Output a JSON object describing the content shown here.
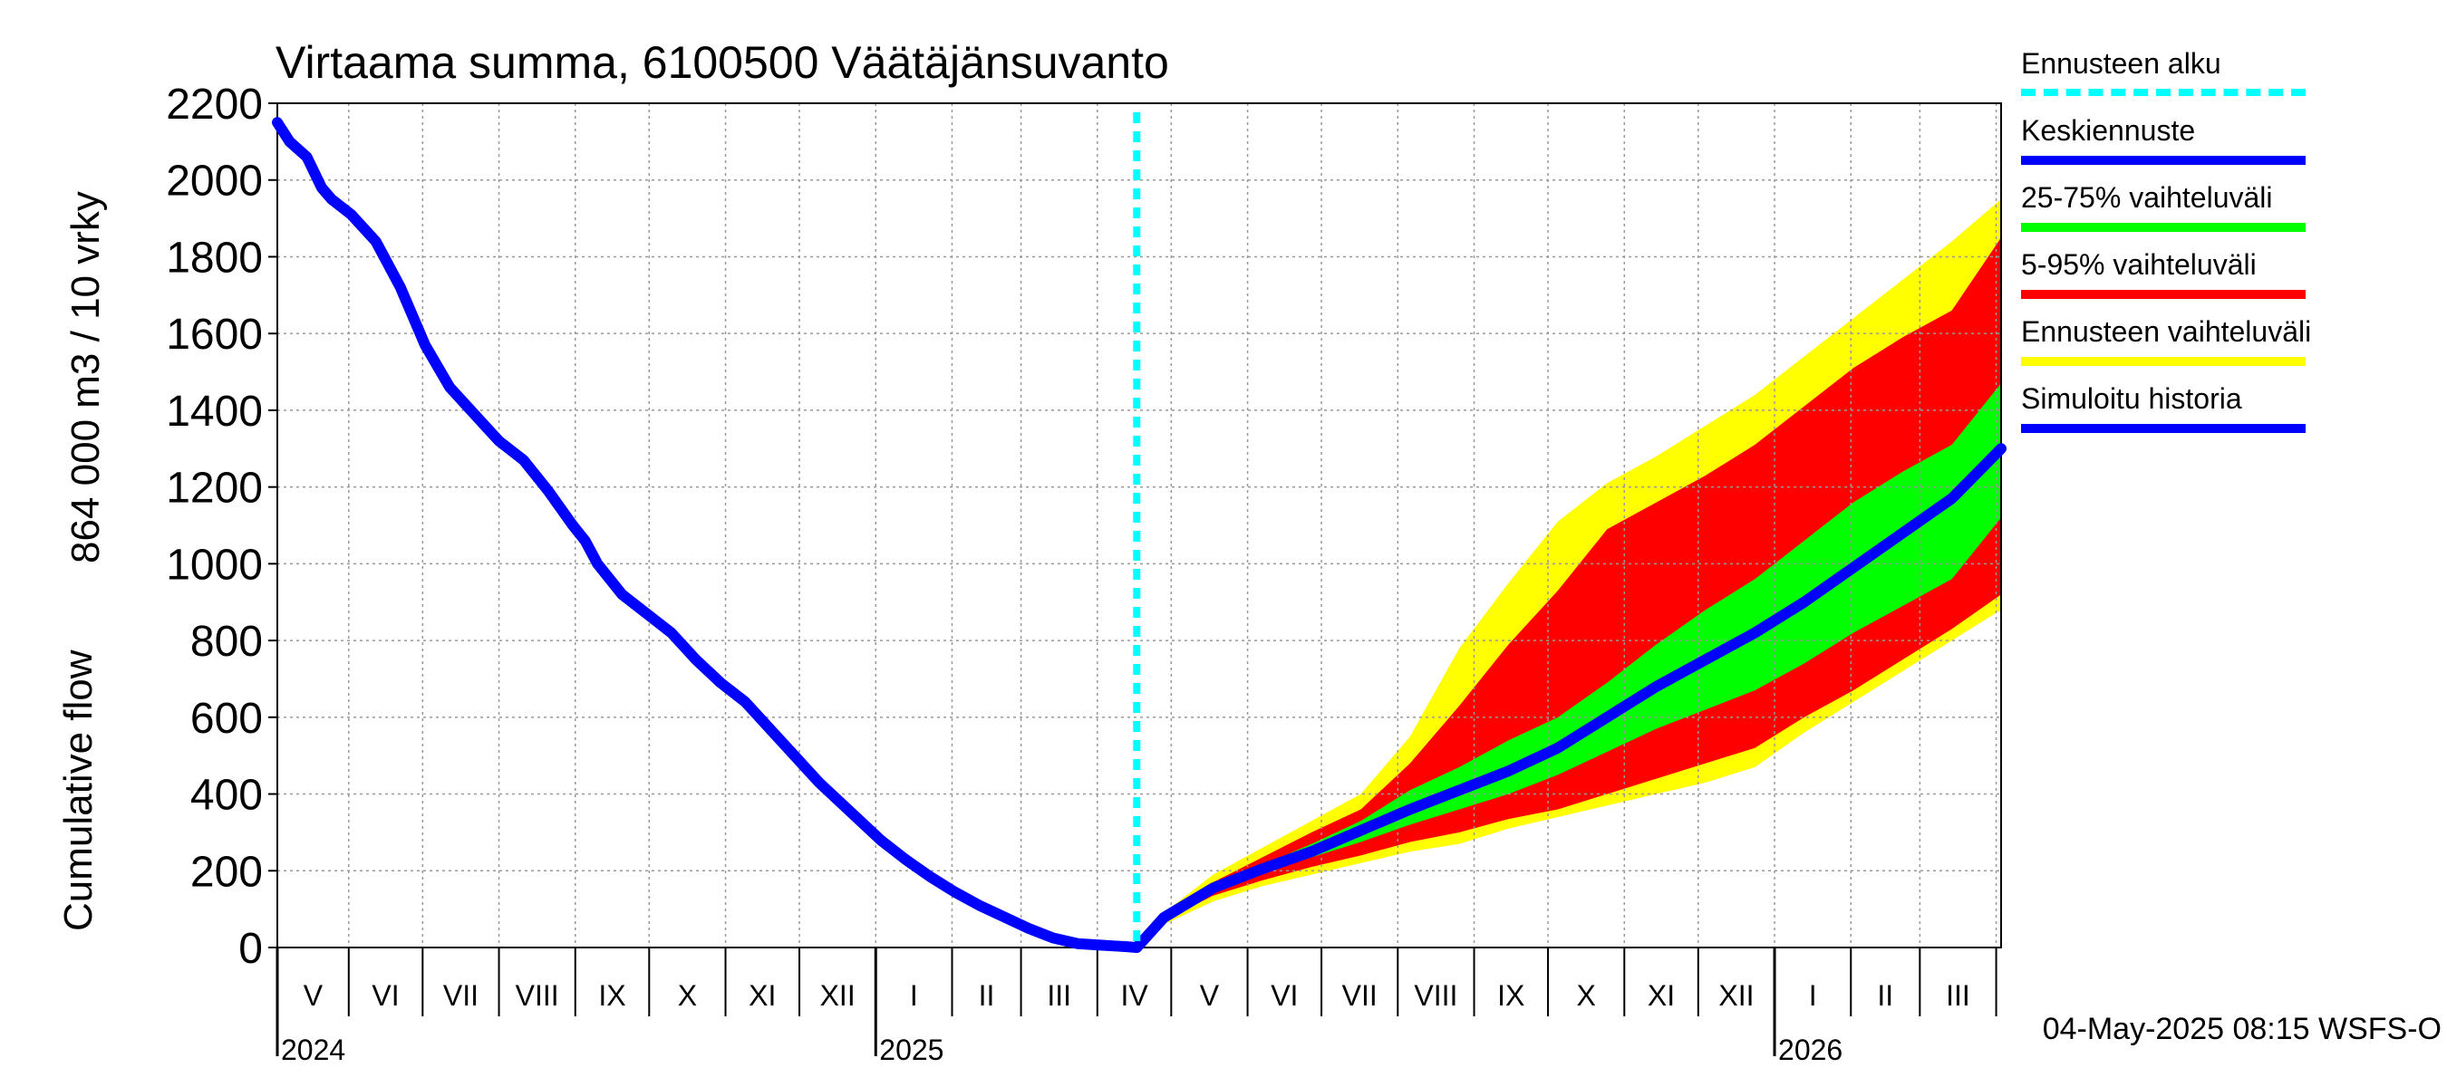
{
  "chart_data": {
    "type": "area",
    "title": "Virtaama summa, 6100500 Väätäjänsuvanto",
    "ylabel_line1": "864 000 m3 / 10 vrky",
    "ylabel_line2": "Cumulative flow",
    "ylim": [
      0,
      2200
    ],
    "yticks": [
      0,
      200,
      400,
      600,
      800,
      1000,
      1200,
      1400,
      1600,
      1800,
      2000,
      2200
    ],
    "xlim_days": [
      0,
      700
    ],
    "forecast_start_day": 349,
    "month_labels": [
      {
        "label": "V",
        "start": 0,
        "end": 29
      },
      {
        "label": "VI",
        "start": 29,
        "end": 59
      },
      {
        "label": "VII",
        "start": 59,
        "end": 90
      },
      {
        "label": "VIII",
        "start": 90,
        "end": 121
      },
      {
        "label": "IX",
        "start": 121,
        "end": 151
      },
      {
        "label": "X",
        "start": 151,
        "end": 182
      },
      {
        "label": "XI",
        "start": 182,
        "end": 212
      },
      {
        "label": "XII",
        "start": 212,
        "end": 243
      },
      {
        "label": "I",
        "start": 243,
        "end": 274
      },
      {
        "label": "II",
        "start": 274,
        "end": 302
      },
      {
        "label": "III",
        "start": 302,
        "end": 333
      },
      {
        "label": "IV",
        "start": 333,
        "end": 363
      },
      {
        "label": "V",
        "start": 363,
        "end": 394
      },
      {
        "label": "VI",
        "start": 394,
        "end": 424
      },
      {
        "label": "VII",
        "start": 424,
        "end": 455
      },
      {
        "label": "VIII",
        "start": 455,
        "end": 486
      },
      {
        "label": "IX",
        "start": 486,
        "end": 516
      },
      {
        "label": "X",
        "start": 516,
        "end": 547
      },
      {
        "label": "XI",
        "start": 547,
        "end": 577
      },
      {
        "label": "XII",
        "start": 577,
        "end": 608
      },
      {
        "label": "I",
        "start": 608,
        "end": 639
      },
      {
        "label": "II",
        "start": 639,
        "end": 667
      },
      {
        "label": "III",
        "start": 667,
        "end": 698
      },
      {
        "label": "IV",
        "start": 698,
        "end": 700
      }
    ],
    "year_labels": [
      {
        "label": "2024",
        "day": 0
      },
      {
        "label": "2025",
        "day": 243
      },
      {
        "label": "2026",
        "day": 608
      }
    ],
    "simulated_history": {
      "x": [
        0,
        5,
        12,
        18,
        22,
        30,
        40,
        50,
        60,
        70,
        80,
        90,
        100,
        110,
        120,
        125,
        130,
        140,
        150,
        160,
        170,
        180,
        190,
        200,
        210,
        220,
        230,
        240,
        245,
        255,
        265,
        275,
        285,
        295,
        305,
        315,
        325,
        330,
        335,
        340,
        345,
        349
      ],
      "y": [
        2150,
        2100,
        2060,
        1980,
        1950,
        1910,
        1840,
        1720,
        1570,
        1460,
        1390,
        1320,
        1270,
        1190,
        1100,
        1060,
        1000,
        920,
        870,
        820,
        750,
        690,
        640,
        570,
        500,
        430,
        370,
        310,
        280,
        230,
        185,
        145,
        110,
        80,
        50,
        25,
        10,
        8,
        6,
        4,
        2,
        0
      ]
    },
    "forecast_x": [
      349,
      360,
      380,
      400,
      420,
      440,
      460,
      480,
      500,
      520,
      540,
      560,
      580,
      600,
      620,
      640,
      660,
      680,
      700
    ],
    "ensemble_range": {
      "low": [
        0,
        60,
        120,
        160,
        190,
        220,
        250,
        270,
        310,
        340,
        370,
        400,
        430,
        470,
        560,
        640,
        720,
        800,
        880
      ],
      "high": [
        0,
        90,
        190,
        260,
        330,
        400,
        550,
        780,
        950,
        1110,
        1210,
        1280,
        1360,
        1440,
        1540,
        1640,
        1740,
        1840,
        1950
      ]
    },
    "p5_95": {
      "low": [
        0,
        70,
        135,
        175,
        210,
        240,
        275,
        300,
        335,
        360,
        400,
        440,
        480,
        520,
        600,
        670,
        750,
        830,
        920
      ],
      "high": [
        0,
        85,
        170,
        235,
        300,
        360,
        480,
        630,
        790,
        930,
        1090,
        1160,
        1230,
        1310,
        1410,
        1510,
        1590,
        1660,
        1850
      ]
    },
    "p25_75": {
      "low": [
        0,
        75,
        150,
        195,
        235,
        275,
        320,
        360,
        400,
        450,
        510,
        570,
        620,
        670,
        740,
        820,
        890,
        960,
        1120
      ]
    },
    "p25_75_high": [
      0,
      80,
      160,
      215,
      270,
      330,
      410,
      470,
      540,
      600,
      690,
      790,
      880,
      960,
      1060,
      1160,
      1240,
      1310,
      1470
    ],
    "median": [
      0,
      78,
      155,
      205,
      250,
      305,
      360,
      410,
      460,
      520,
      600,
      680,
      750,
      820,
      900,
      990,
      1080,
      1170,
      1300
    ],
    "legend": [
      {
        "label": "Ennusteen alku",
        "color": "#00ffff",
        "style": "dashed"
      },
      {
        "label": "Keskiennuste",
        "color": "#0000ff",
        "style": "solid"
      },
      {
        "label": "25-75% vaihteluväli",
        "color": "#00ff00",
        "style": "solid"
      },
      {
        "label": "5-95% vaihteluväli",
        "color": "#ff0000",
        "style": "solid"
      },
      {
        "label": "Ennusteen vaihteluväli",
        "color": "#ffff00",
        "style": "solid"
      },
      {
        "label": "Simuloitu historia",
        "color": "#0000ff",
        "style": "solid"
      }
    ],
    "colors": {
      "ensemble": "#ffff00",
      "p5_95": "#ff0000",
      "p25_75": "#00ff00",
      "median": "#0000ff",
      "history": "#0000ff",
      "forecast_start": "#00ffff",
      "grid": "#999999"
    },
    "timestamp": "04-May-2025 08:15 WSFS-O"
  }
}
